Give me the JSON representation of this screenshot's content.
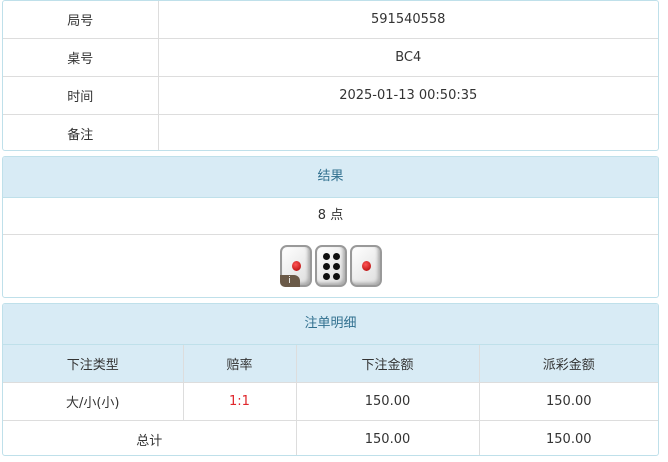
{
  "info": {
    "rows": [
      {
        "label": "局号",
        "value": "591540558"
      },
      {
        "label": "桌号",
        "value": "BC4"
      },
      {
        "label": "时间",
        "value": "2025-01-13 00:50:35"
      },
      {
        "label": "备注",
        "value": ""
      }
    ]
  },
  "result": {
    "title": "结果",
    "points": "8 点",
    "dice": [
      1,
      6,
      1
    ],
    "info_badge": "i"
  },
  "bets": {
    "title": "注单明细",
    "headers": [
      "下注类型",
      "赔率",
      "下注金额",
      "派彩金额"
    ],
    "rows": [
      {
        "type": "大/小(小)",
        "odds": "1:1",
        "amount": "150.00",
        "payout": "150.00"
      }
    ],
    "total": {
      "label": "总计",
      "amount": "150.00",
      "payout": "150.00"
    },
    "odds_color": "#e0262b"
  }
}
